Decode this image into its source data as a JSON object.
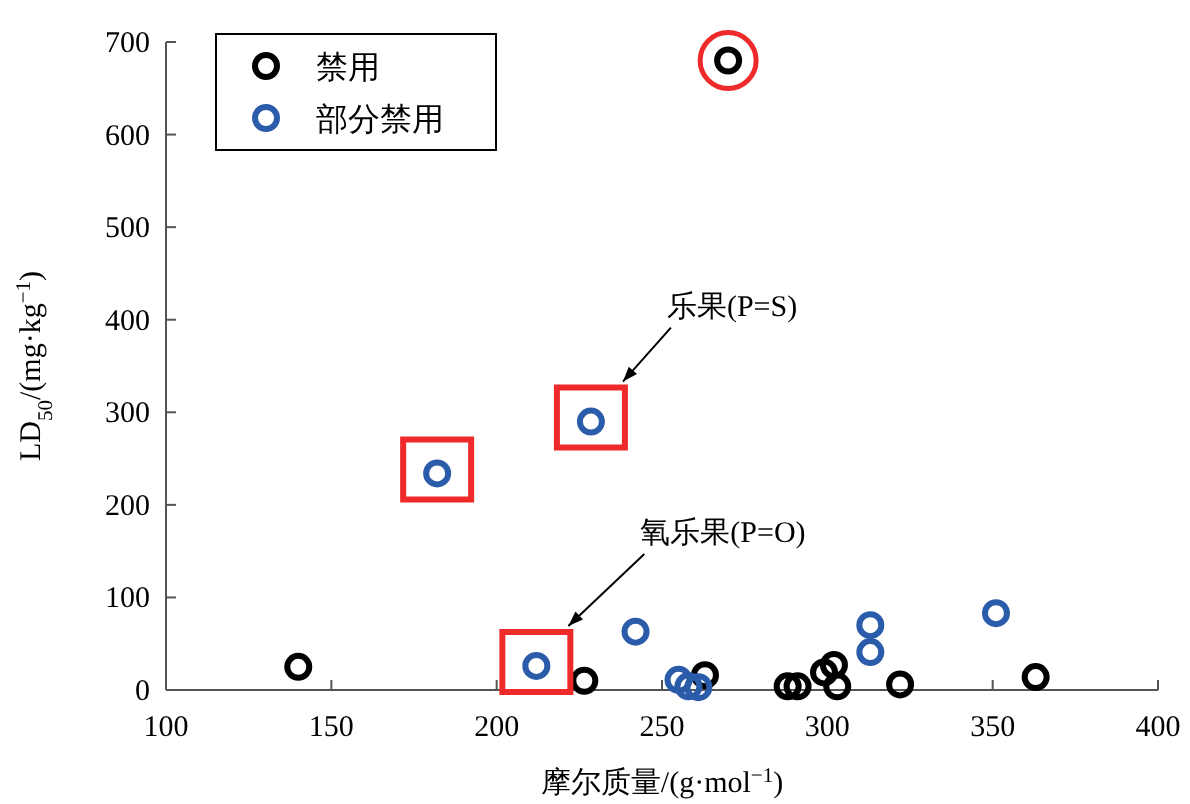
{
  "chart_data": {
    "type": "scatter",
    "xlabel": "摩尔质量/(g·mol$^{−1}$)",
    "ylabel": "LD$_{50}$/(mg·kg$^{−1}$)",
    "xlim": [
      100,
      400
    ],
    "xticks": [
      100,
      150,
      200,
      250,
      300,
      350,
      400
    ],
    "ylim": [
      0,
      700
    ],
    "yticks": [
      0,
      100,
      200,
      300,
      400,
      500,
      600,
      700
    ],
    "legend": "top left",
    "marker": "circle",
    "series": [
      {
        "name": "禁用",
        "color": "#000000",
        "x": [
          270,
          140,
          226.5,
          263,
          288,
          291,
          299,
          302,
          303,
          322,
          363
        ],
        "values": [
          680,
          25,
          10,
          16,
          4,
          4,
          19,
          27,
          4,
          6,
          14
        ]
      },
      {
        "name": "部分禁用",
        "color": "#2a5caa",
        "x": [
          228.5,
          182,
          212,
          242,
          255,
          258,
          261,
          313,
          313,
          351
        ],
        "values": [
          290,
          234,
          26,
          63,
          11,
          4,
          3,
          70,
          41,
          83
        ]
      }
    ],
    "annotations": [
      "乐果(P=S)",
      "氧乐果(P=O)"
    ]
  }
}
